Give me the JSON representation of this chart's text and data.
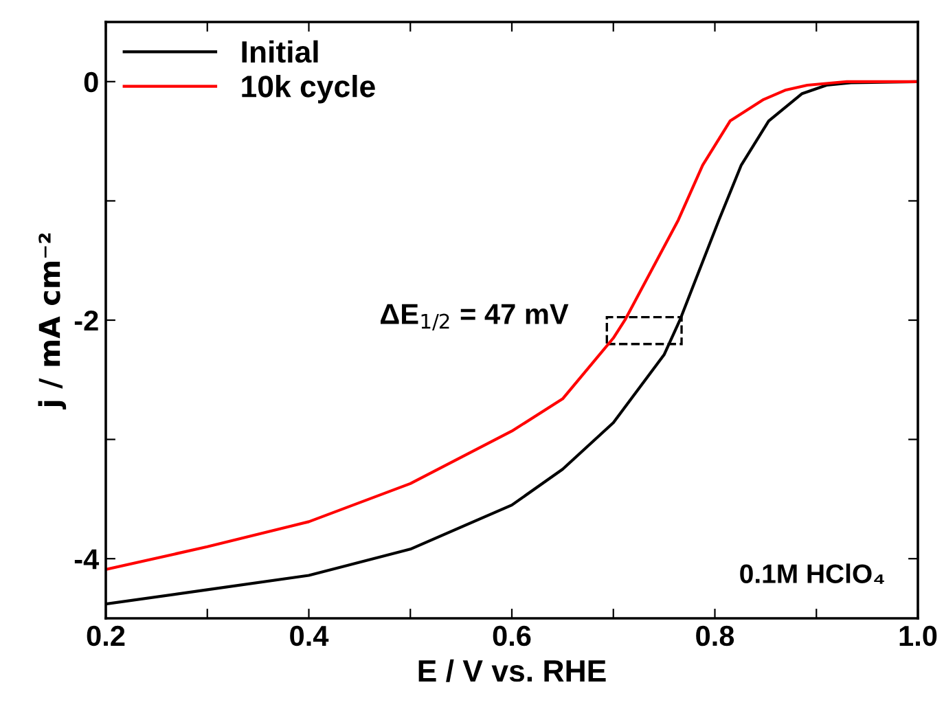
{
  "chart_data": {
    "type": "line",
    "xlabel": "E / V vs. RHE",
    "ylabel": "j / mA cm⁻²",
    "xlim": [
      0.2,
      1.0
    ],
    "ylim": [
      -4.5,
      0.5
    ],
    "xticks": [
      0.2,
      {
        "value": 0.3,
        "label": null
      },
      0.4,
      {
        "value": 0.5,
        "label": null
      },
      0.6,
      {
        "value": 0.7,
        "label": null
      },
      0.8,
      {
        "value": 0.9,
        "label": null
      },
      {
        "value": 1.0,
        "label": "1.0"
      }
    ],
    "yticks": [
      {
        "value": -4,
        "label": "-4"
      },
      {
        "value": -3,
        "label": null
      },
      {
        "value": -2,
        "label": "-2"
      },
      {
        "value": -1,
        "label": null
      },
      0
    ],
    "legend": "top left",
    "grid": false,
    "series": [
      {
        "name": "Initial",
        "color": "#000000",
        "x": [
          0.2,
          0.3,
          0.4,
          0.5,
          0.6,
          0.65,
          0.7,
          0.75,
          0.766,
          0.804,
          0.826,
          0.853,
          0.886,
          0.91,
          0.934,
          1.0
        ],
        "values": [
          -4.38,
          -4.26,
          -4.14,
          -3.92,
          -3.55,
          -3.25,
          -2.86,
          -2.29,
          -1.99,
          -1.16,
          -0.7,
          -0.33,
          -0.1,
          -0.03,
          -0.01,
          0
        ]
      },
      {
        "name": "10k cycle",
        "color": "#ff0000",
        "x": [
          0.2,
          0.3,
          0.4,
          0.5,
          0.6,
          0.65,
          0.7,
          0.712,
          0.764,
          0.788,
          0.815,
          0.848,
          0.87,
          0.891,
          0.93,
          1.0
        ],
        "values": [
          -4.09,
          -3.9,
          -3.69,
          -3.37,
          -2.93,
          -2.66,
          -2.15,
          -1.99,
          -1.16,
          -0.7,
          -0.33,
          -0.15,
          -0.07,
          -0.03,
          0,
          0
        ]
      }
    ],
    "annotations": [
      "ΔE$_{1/2}$ = 47 mV",
      "0.1M HClO₄"
    ]
  }
}
